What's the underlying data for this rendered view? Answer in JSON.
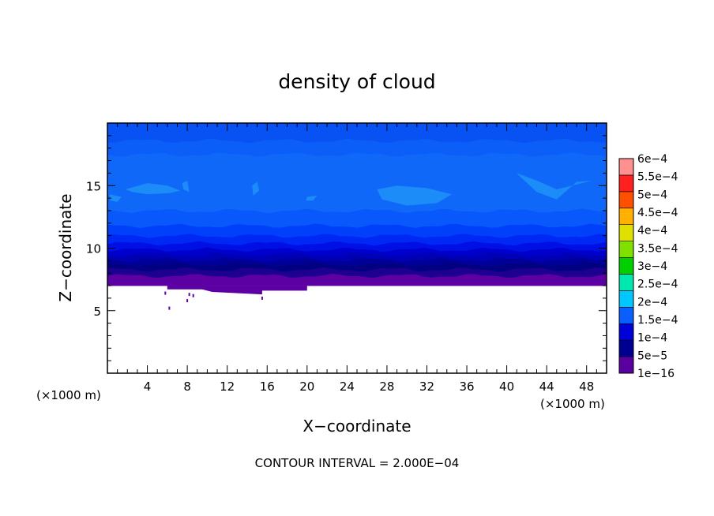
{
  "chart_data": {
    "type": "heatmap",
    "title": "density of cloud",
    "xlabel": "X−coordinate",
    "ylabel": "Z−coordinate",
    "x_unit_left": "(×1000 m)",
    "x_unit_right": "(×1000 m)",
    "footer": "CONTOUR INTERVAL = 2.000E−04",
    "xlim": [
      0,
      50
    ],
    "ylim": [
      0,
      20
    ],
    "x_ticks": [
      4,
      8,
      12,
      16,
      20,
      24,
      28,
      32,
      36,
      40,
      44,
      48
    ],
    "x_tick_labels": [
      "4",
      "8",
      "12",
      "16",
      "20",
      "24",
      "28",
      "32",
      "36",
      "40",
      "44",
      "48"
    ],
    "y_ticks": [
      5,
      10,
      15
    ],
    "y_tick_labels": [
      "5",
      "10",
      "15"
    ],
    "colorbar": {
      "labels": [
        "1e−16",
        "5e−5",
        "1e−4",
        "1.5e−4",
        "2e−4",
        "2.5e−4",
        "3e−4",
        "3.5e−4",
        "4e−4",
        "4.5e−4",
        "5e−4",
        "5.5e−4",
        "6e−4"
      ],
      "colors": [
        "#5a00a0",
        "#000090",
        "#0000d8",
        "#0a60ff",
        "#00c8ff",
        "#00e8b0",
        "#00d000",
        "#80e000",
        "#e0e000",
        "#ffb000",
        "#ff5000",
        "#ff2020",
        "#ff9090"
      ]
    },
    "layers": [
      {
        "z_bottom": 7.0,
        "z_top": 7.8,
        "color": "#5c00a4"
      },
      {
        "z_bottom": 7.8,
        "z_top": 8.3,
        "color": "#1e0090"
      },
      {
        "z_bottom": 8.3,
        "z_top": 8.7,
        "color": "#000080"
      },
      {
        "z_bottom": 8.7,
        "z_top": 9.1,
        "color": "#000098"
      },
      {
        "z_bottom": 9.1,
        "z_top": 9.5,
        "color": "#0000b4"
      },
      {
        "z_bottom": 9.5,
        "z_top": 9.9,
        "color": "#0000cc"
      },
      {
        "z_bottom": 9.9,
        "z_top": 10.4,
        "color": "#0010e4"
      },
      {
        "z_bottom": 10.4,
        "z_top": 11.0,
        "color": "#0028f4"
      },
      {
        "z_bottom": 11.0,
        "z_top": 11.8,
        "color": "#0040fa"
      },
      {
        "z_bottom": 11.8,
        "z_top": 13.0,
        "color": "#0858fc"
      },
      {
        "z_bottom": 13.0,
        "z_top": 17.5,
        "color": "#1068f8"
      },
      {
        "z_bottom": 17.5,
        "z_top": 18.6,
        "color": "#0c5ef8"
      },
      {
        "z_bottom": 18.6,
        "z_top": 20.0,
        "color": "#0852f4"
      }
    ],
    "light_patches": [
      {
        "x": [
          1.8,
          4,
          6,
          7.3,
          6.2,
          4,
          2.5
        ],
        "z": [
          14.7,
          15.2,
          15.0,
          14.6,
          14.4,
          14.3,
          14.5
        ]
      },
      {
        "x": [
          0.2,
          1.4,
          1.0,
          0.3
        ],
        "z": [
          14.3,
          14.1,
          13.7,
          13.8
        ]
      },
      {
        "x": [
          7.5,
          8.0,
          8.2,
          7.6
        ],
        "z": [
          15.2,
          15.4,
          14.5,
          14.7
        ]
      },
      {
        "x": [
          14.5,
          15.0,
          15.2,
          14.6
        ],
        "z": [
          15.0,
          15.3,
          14.6,
          14.2
        ]
      },
      {
        "x": [
          20,
          21,
          20.6,
          19.9
        ],
        "z": [
          14.1,
          14.2,
          13.8,
          13.8
        ]
      },
      {
        "x": [
          27,
          29,
          32,
          34.5,
          33,
          30,
          27.5
        ],
        "z": [
          14.7,
          15.0,
          14.8,
          14.3,
          13.6,
          13.4,
          13.9
        ]
      },
      {
        "x": [
          41,
          43,
          45,
          47,
          48.5,
          47,
          45,
          43,
          41.5
        ],
        "z": [
          16.0,
          15.4,
          14.7,
          15.1,
          15.4,
          15.3,
          13.9,
          14.5,
          15.6
        ]
      }
    ],
    "cloud_base_patches": [
      {
        "x": [
          6.0,
          20.0,
          20.0,
          15.5,
          15.5,
          10.5,
          9.5,
          6.0
        ],
        "z": [
          7.0,
          7.0,
          6.6,
          6.6,
          6.3,
          6.5,
          6.7,
          6.7
        ]
      }
    ],
    "scatter_specks": [
      {
        "x": 5.8,
        "z": 6.4
      },
      {
        "x": 6.2,
        "z": 5.2
      },
      {
        "x": 8.2,
        "z": 6.3
      },
      {
        "x": 8.0,
        "z": 5.8
      },
      {
        "x": 8.6,
        "z": 6.2
      },
      {
        "x": 15.5,
        "z": 6.0
      }
    ]
  }
}
